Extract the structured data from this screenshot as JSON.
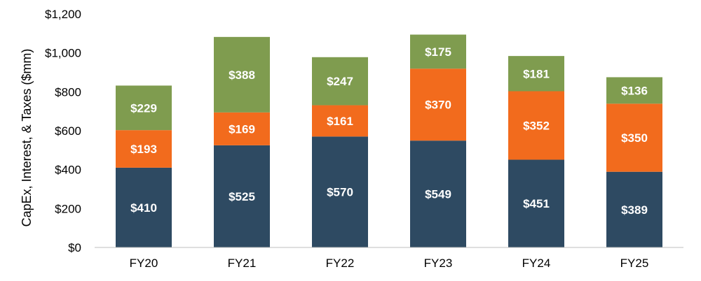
{
  "chart_data": {
    "type": "bar",
    "stacked": true,
    "title": "",
    "xlabel": "",
    "ylabel": "CapEx, Interest, & Taxes ($mm)",
    "ylim": [
      0,
      1200
    ],
    "yticks": [
      0,
      200,
      400,
      600,
      800,
      1000,
      1200
    ],
    "ytick_labels": [
      "$0",
      "$200",
      "$400",
      "$600",
      "$800",
      "$1,000",
      "$1,200"
    ],
    "categories": [
      "FY20",
      "FY21",
      "FY22",
      "FY23",
      "FY24",
      "FY25"
    ],
    "series": [
      {
        "color": "#2e4a62",
        "values": [
          410,
          525,
          570,
          549,
          451,
          389
        ],
        "labels": [
          "$410",
          "$525",
          "$570",
          "$549",
          "$451",
          "$389"
        ]
      },
      {
        "color": "#f26b1d",
        "values": [
          193,
          169,
          161,
          370,
          352,
          350
        ],
        "labels": [
          "$193",
          "$169",
          "$161",
          "$370",
          "$352",
          "$350"
        ]
      },
      {
        "color": "#7f9c4f",
        "values": [
          229,
          388,
          247,
          175,
          181,
          136
        ],
        "labels": [
          "$229",
          "$388",
          "$247",
          "$175",
          "$181",
          "$136"
        ]
      }
    ],
    "grid": false,
    "legend": "none"
  }
}
